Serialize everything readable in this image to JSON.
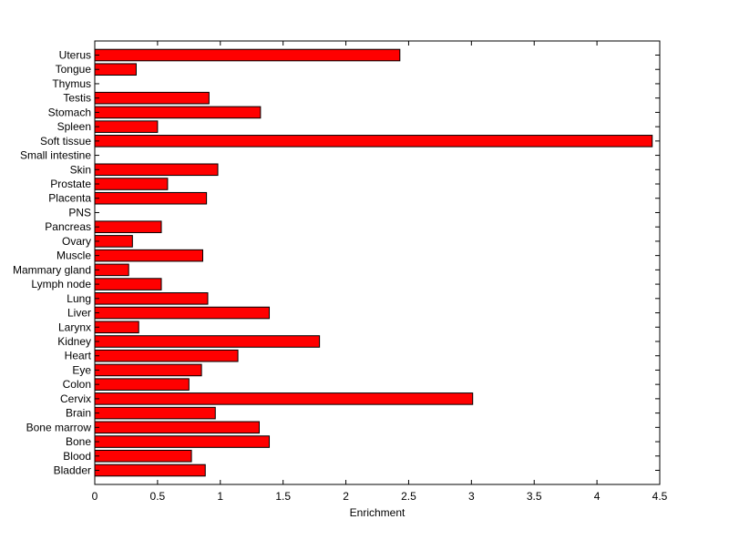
{
  "chart_data": {
    "type": "bar",
    "orientation": "horizontal",
    "title": "",
    "xlabel": "Enrichment",
    "ylabel": "",
    "xlim": [
      0,
      4.5
    ],
    "xticks": [
      0,
      0.5,
      1,
      1.5,
      2,
      2.5,
      3,
      3.5,
      4,
      4.5
    ],
    "xtick_labels": [
      "0",
      "0.5",
      "1",
      "1.5",
      "2",
      "2.5",
      "3",
      "3.5",
      "4",
      "4.5"
    ],
    "grid": false,
    "legend": "none",
    "bar_color": "#ff0000",
    "edge_color": "#000000",
    "categories": [
      "Uterus",
      "Tongue",
      "Thymus",
      "Testis",
      "Stomach",
      "Spleen",
      "Soft tissue",
      "Small intestine",
      "Skin",
      "Prostate",
      "Placenta",
      "PNS",
      "Pancreas",
      "Ovary",
      "Muscle",
      "Mammary gland",
      "Lymph node",
      "Lung",
      "Liver",
      "Larynx",
      "Kidney",
      "Heart",
      "Eye",
      "Colon",
      "Cervix",
      "Brain",
      "Bone marrow",
      "Bone",
      "Blood",
      "Bladder"
    ],
    "values": [
      2.43,
      0.33,
      0,
      0.91,
      1.32,
      0.5,
      4.44,
      0,
      0.98,
      0.58,
      0.89,
      0,
      0.53,
      0.3,
      0.86,
      0.27,
      0.53,
      0.9,
      1.39,
      0.35,
      1.79,
      1.14,
      0.85,
      0.75,
      3.01,
      0.96,
      1.31,
      1.39,
      0.77,
      0.88
    ]
  }
}
